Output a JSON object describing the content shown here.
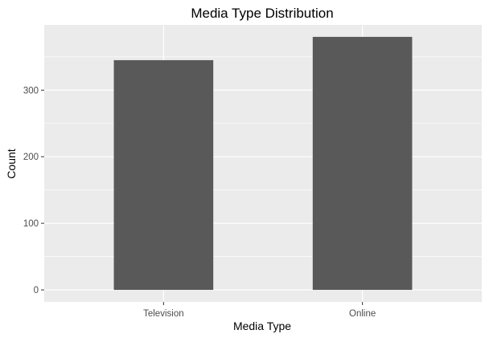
{
  "chart_data": {
    "type": "bar",
    "title": "Media Type Distribution",
    "xlabel": "Media Type",
    "ylabel": "Count",
    "categories": [
      "Television",
      "Online"
    ],
    "values": [
      345,
      380
    ],
    "ylim": [
      -18,
      398
    ],
    "yticks": [
      0,
      100,
      200,
      300
    ],
    "grid": true,
    "legend": "none",
    "colors": {
      "bar": "#595959",
      "panel": "#ebebeb",
      "grid_major": "#ffffff",
      "tick_label": "#4d4d4d"
    }
  }
}
